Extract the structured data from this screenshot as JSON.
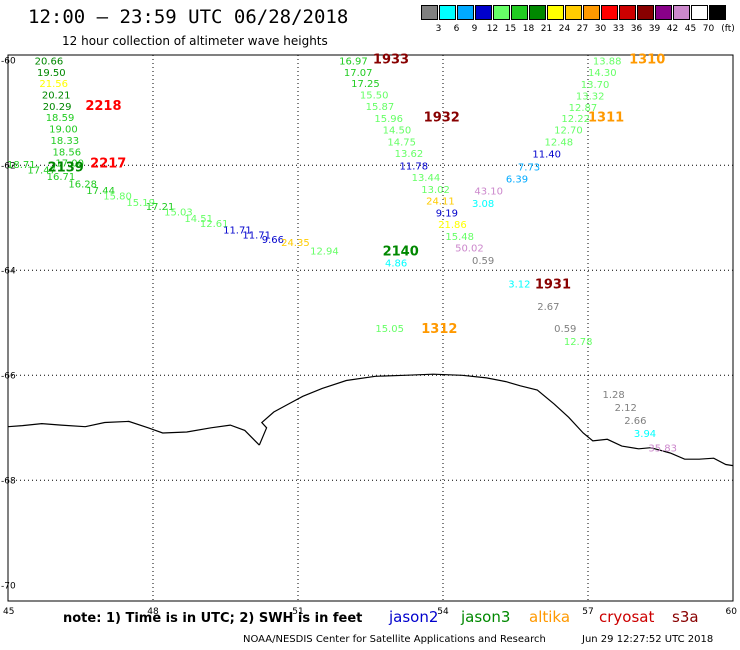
{
  "header": {
    "title": "12:00 – 23:59 UTC 06/28/2018",
    "subtitle": "12 hour collection of altimeter wave heights"
  },
  "colorbar": {
    "unit": "(ft)",
    "colors": [
      "#808080",
      "#00ffff",
      "#00aaff",
      "#0000cc",
      "#66ff66",
      "#22cc22",
      "#008800",
      "#ffff00",
      "#ffcc00",
      "#ff9900",
      "#ff0000",
      "#cc0000",
      "#880000",
      "#880088",
      "#cc88cc",
      "#ffffff",
      "#000000"
    ],
    "labels": [
      "3",
      "6",
      "9",
      "12",
      "15",
      "18",
      "21",
      "24",
      "27",
      "30",
      "33",
      "36",
      "39",
      "42",
      "45",
      "70"
    ]
  },
  "axes": {
    "x_ticks": [
      "45",
      "48",
      "51",
      "54",
      "57",
      "60"
    ],
    "y_ticks": [
      "-60",
      "-62",
      "-64",
      "-66",
      "-68",
      "-70"
    ]
  },
  "swh_labels": [
    {
      "t": "20.66",
      "c": "#008800",
      "lon": 45.55,
      "lat": -60.0
    },
    {
      "t": "19.50",
      "c": "#008800",
      "lon": 45.6,
      "lat": -60.22
    },
    {
      "t": "21.56",
      "c": "#ffff00",
      "lon": 45.65,
      "lat": -60.43
    },
    {
      "t": "20.21",
      "c": "#008800",
      "lon": 45.7,
      "lat": -60.65
    },
    {
      "t": "20.29",
      "c": "#008800",
      "lon": 45.72,
      "lat": -60.87
    },
    {
      "t": "18.59",
      "c": "#22cc22",
      "lon": 45.78,
      "lat": -61.08
    },
    {
      "t": "19.00",
      "c": "#22cc22",
      "lon": 45.85,
      "lat": -61.3
    },
    {
      "t": "18.33",
      "c": "#22cc22",
      "lon": 45.88,
      "lat": -61.52
    },
    {
      "t": "18.56",
      "c": "#22cc22",
      "lon": 45.92,
      "lat": -61.74
    },
    {
      "t": "17.00",
      "c": "#22cc22",
      "lon": 45.98,
      "lat": -61.95
    },
    {
      "t": "18.71",
      "c": "#22cc22",
      "lon": 44.98,
      "lat": -61.98
    },
    {
      "t": "17.47",
      "c": "#22cc22",
      "lon": 45.4,
      "lat": -62.08
    },
    {
      "t": "16.71",
      "c": "#22cc22",
      "lon": 45.8,
      "lat": -62.2
    },
    {
      "t": "16.28",
      "c": "#22cc22",
      "lon": 46.25,
      "lat": -62.35
    },
    {
      "t": "17.44",
      "c": "#22cc22",
      "lon": 46.62,
      "lat": -62.47
    },
    {
      "t": "15.80",
      "c": "#66ff66",
      "lon": 46.97,
      "lat": -62.58
    },
    {
      "t": "15.19",
      "c": "#66ff66",
      "lon": 47.45,
      "lat": -62.7
    },
    {
      "t": "17.21",
      "c": "#22cc22",
      "lon": 47.85,
      "lat": -62.78
    },
    {
      "t": "15.03",
      "c": "#66ff66",
      "lon": 48.23,
      "lat": -62.88
    },
    {
      "t": "14.51",
      "c": "#66ff66",
      "lon": 48.65,
      "lat": -63.0
    },
    {
      "t": "12.61",
      "c": "#66ff66",
      "lon": 48.97,
      "lat": -63.1
    },
    {
      "t": "11.71",
      "c": "#0000cc",
      "lon": 49.45,
      "lat": -63.22
    },
    {
      "t": "11.71",
      "c": "#0000cc",
      "lon": 49.85,
      "lat": -63.32
    },
    {
      "t": "9.66",
      "c": "#0000cc",
      "lon": 50.25,
      "lat": -63.4
    },
    {
      "t": "24.35",
      "c": "#ffcc00",
      "lon": 50.65,
      "lat": -63.46
    },
    {
      "t": "12.94",
      "c": "#66ff66",
      "lon": 51.25,
      "lat": -63.62
    },
    {
      "t": "4.86",
      "c": "#00ffff",
      "lon": 52.8,
      "lat": -63.85
    },
    {
      "t": "16.97",
      "c": "#22cc22",
      "lon": 51.85,
      "lat": -60.0
    },
    {
      "t": "17.07",
      "c": "#22cc22",
      "lon": 51.95,
      "lat": -60.22
    },
    {
      "t": "17.25",
      "c": "#22cc22",
      "lon": 52.1,
      "lat": -60.43
    },
    {
      "t": "15.50",
      "c": "#66ff66",
      "lon": 52.28,
      "lat": -60.65
    },
    {
      "t": "15.87",
      "c": "#66ff66",
      "lon": 52.4,
      "lat": -60.87
    },
    {
      "t": "15.96",
      "c": "#66ff66",
      "lon": 52.58,
      "lat": -61.1
    },
    {
      "t": "14.50",
      "c": "#66ff66",
      "lon": 52.75,
      "lat": -61.32
    },
    {
      "t": "14.75",
      "c": "#66ff66",
      "lon": 52.85,
      "lat": -61.55
    },
    {
      "t": "13.62",
      "c": "#66ff66",
      "lon": 53.0,
      "lat": -61.77
    },
    {
      "t": "11.78",
      "c": "#0000cc",
      "lon": 53.1,
      "lat": -62.0
    },
    {
      "t": "13.44",
      "c": "#66ff66",
      "lon": 53.35,
      "lat": -62.22
    },
    {
      "t": "13.02",
      "c": "#66ff66",
      "lon": 53.55,
      "lat": -62.45
    },
    {
      "t": "24.11",
      "c": "#ffcc00",
      "lon": 53.65,
      "lat": -62.67
    },
    {
      "t": "9.19",
      "c": "#0000cc",
      "lon": 53.85,
      "lat": -62.9
    },
    {
      "t": "21.86",
      "c": "#ffff00",
      "lon": 53.9,
      "lat": -63.12
    },
    {
      "t": "15.48",
      "c": "#66ff66",
      "lon": 54.05,
      "lat": -63.35
    },
    {
      "t": "50.02",
      "c": "#cc88cc",
      "lon": 54.25,
      "lat": -63.57
    },
    {
      "t": "0.59",
      "c": "#808080",
      "lon": 54.6,
      "lat": -63.8
    },
    {
      "t": "13.88",
      "c": "#66ff66",
      "lon": 57.1,
      "lat": -60.0
    },
    {
      "t": "14.30",
      "c": "#66ff66",
      "lon": 57.0,
      "lat": -60.22
    },
    {
      "t": "13.70",
      "c": "#66ff66",
      "lon": 56.85,
      "lat": -60.45
    },
    {
      "t": "13.32",
      "c": "#66ff66",
      "lon": 56.75,
      "lat": -60.67
    },
    {
      "t": "12.87",
      "c": "#66ff66",
      "lon": 56.6,
      "lat": -60.89
    },
    {
      "t": "12.22",
      "c": "#66ff66",
      "lon": 56.45,
      "lat": -61.1
    },
    {
      "t": "12.70",
      "c": "#66ff66",
      "lon": 56.3,
      "lat": -61.32
    },
    {
      "t": "12.48",
      "c": "#66ff66",
      "lon": 56.1,
      "lat": -61.55
    },
    {
      "t": "11.40",
      "c": "#0000cc",
      "lon": 55.85,
      "lat": -61.78
    },
    {
      "t": "7.73",
      "c": "#00aaff",
      "lon": 55.55,
      "lat": -62.02
    },
    {
      "t": "6.39",
      "c": "#00aaff",
      "lon": 55.3,
      "lat": -62.25
    },
    {
      "t": "43.10",
      "c": "#cc88cc",
      "lon": 54.65,
      "lat": -62.48
    },
    {
      "t": "3.08",
      "c": "#00ffff",
      "lon": 54.6,
      "lat": -62.72
    },
    {
      "t": "3.12",
      "c": "#00ffff",
      "lon": 55.35,
      "lat": -64.25
    },
    {
      "t": "2.67",
      "c": "#808080",
      "lon": 55.95,
      "lat": -64.68
    },
    {
      "t": "0.59",
      "c": "#808080",
      "lon": 56.3,
      "lat": -65.1
    },
    {
      "t": "12.78",
      "c": "#66ff66",
      "lon": 56.5,
      "lat": -65.35
    },
    {
      "t": "15.05",
      "c": "#66ff66",
      "lon": 52.6,
      "lat": -65.1
    },
    {
      "t": "1.28",
      "c": "#808080",
      "lon": 57.3,
      "lat": -66.36
    },
    {
      "t": "2.12",
      "c": "#808080",
      "lon": 57.55,
      "lat": -66.6
    },
    {
      "t": "2.66",
      "c": "#808080",
      "lon": 57.75,
      "lat": -66.85
    },
    {
      "t": "3.94",
      "c": "#00ffff",
      "lon": 57.95,
      "lat": -67.1
    },
    {
      "t": "35.83",
      "c": "#cc88cc",
      "lon": 58.25,
      "lat": -67.38
    }
  ],
  "time_labels": [
    {
      "t": "2218",
      "c": "#ff0000",
      "lon": 46.6,
      "lat": -60.85
    },
    {
      "t": "2217",
      "c": "#ff0000",
      "lon": 46.7,
      "lat": -61.95
    },
    {
      "t": "2139",
      "c": "#008800",
      "lon": 45.82,
      "lat": -62.02
    },
    {
      "t": "2140",
      "c": "#008800",
      "lon": 52.75,
      "lat": -63.62
    },
    {
      "t": "1933",
      "c": "#880000",
      "lon": 52.55,
      "lat": -59.97
    },
    {
      "t": "1932",
      "c": "#880000",
      "lon": 53.6,
      "lat": -61.07
    },
    {
      "t": "1310",
      "c": "#ff9900",
      "lon": 57.85,
      "lat": -59.97
    },
    {
      "t": "1311",
      "c": "#ff9900",
      "lon": 57.0,
      "lat": -61.07
    },
    {
      "t": "1931",
      "c": "#880000",
      "lon": 55.9,
      "lat": -64.25
    },
    {
      "t": "1312",
      "c": "#ff9900",
      "lon": 53.55,
      "lat": -65.1
    }
  ],
  "coastline": [
    [
      50.2,
      -67.33
    ],
    [
      50.35,
      -67.0
    ],
    [
      50.25,
      -66.9
    ],
    [
      50.5,
      -66.7
    ],
    [
      50.8,
      -66.55
    ],
    [
      51.1,
      -66.4
    ],
    [
      51.5,
      -66.25
    ],
    [
      52.0,
      -66.1
    ],
    [
      52.6,
      -66.02
    ],
    [
      53.2,
      -66.0
    ],
    [
      53.8,
      -65.98
    ],
    [
      54.4,
      -66.0
    ],
    [
      54.9,
      -66.05
    ],
    [
      55.3,
      -66.12
    ],
    [
      55.6,
      -66.2
    ],
    [
      55.95,
      -66.28
    ],
    [
      56.3,
      -66.55
    ],
    [
      56.6,
      -66.8
    ],
    [
      56.9,
      -67.1
    ],
    [
      57.1,
      -67.25
    ],
    [
      57.4,
      -67.22
    ],
    [
      57.7,
      -67.35
    ],
    [
      58.05,
      -67.4
    ],
    [
      58.3,
      -67.38
    ],
    [
      58.7,
      -67.48
    ],
    [
      59.0,
      -67.6
    ],
    [
      59.3,
      -67.6
    ],
    [
      59.6,
      -67.58
    ],
    [
      59.85,
      -67.7
    ],
    [
      60.0,
      -67.72
    ]
  ],
  "coastline_west": [
    [
      45.0,
      -66.98
    ],
    [
      45.3,
      -66.96
    ],
    [
      45.7,
      -66.92
    ],
    [
      46.1,
      -66.95
    ],
    [
      46.6,
      -66.98
    ],
    [
      47.0,
      -66.9
    ],
    [
      47.5,
      -66.88
    ],
    [
      47.9,
      -67.0
    ],
    [
      48.2,
      -67.1
    ],
    [
      48.7,
      -67.08
    ],
    [
      49.2,
      -67.0
    ],
    [
      49.6,
      -66.95
    ],
    [
      49.9,
      -67.05
    ],
    [
      50.2,
      -67.33
    ]
  ],
  "satellites": [
    {
      "name": "jason2",
      "color": "#0000cc"
    },
    {
      "name": "jason3",
      "color": "#008800"
    },
    {
      "name": "altika",
      "color": "#ff9900"
    },
    {
      "name": "cryosat",
      "color": "#cc0000"
    },
    {
      "name": "s3a",
      "color": "#880000"
    }
  ],
  "footer": {
    "note": "note:  1) Time is in UTC;  2) SWH is in feet",
    "credit": "NOAA/NESDIS Center for Satellite Applications and Research",
    "issued": "Jun 29 12:27:52 UTC 2018"
  }
}
